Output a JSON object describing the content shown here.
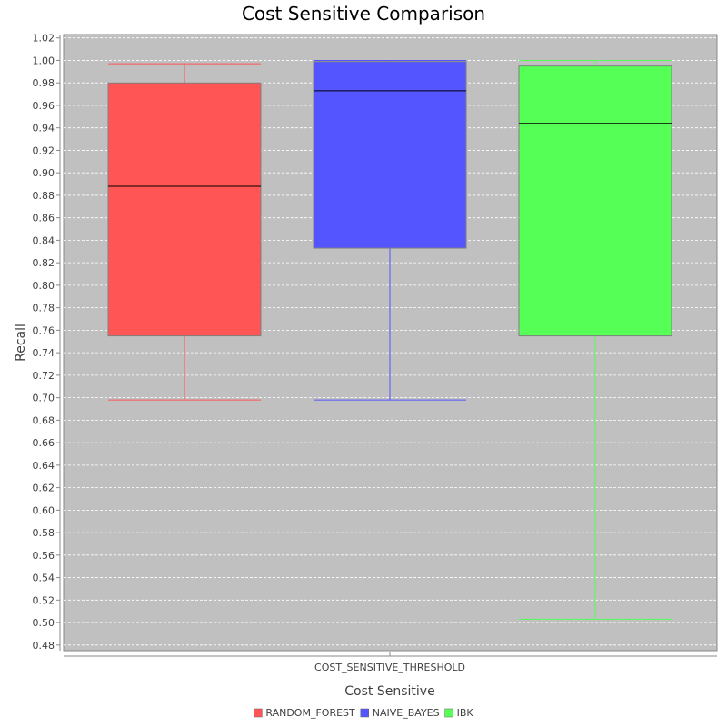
{
  "chart_data": {
    "type": "box",
    "title": "Cost Sensitive Comparison",
    "xlabel": "Cost Sensitive",
    "ylabel": "Recall",
    "ylim": [
      0.475,
      1.023
    ],
    "yticks": [
      "0.48",
      "0.50",
      "0.52",
      "0.54",
      "0.56",
      "0.58",
      "0.60",
      "0.62",
      "0.64",
      "0.66",
      "0.68",
      "0.70",
      "0.72",
      "0.74",
      "0.76",
      "0.78",
      "0.80",
      "0.82",
      "0.84",
      "0.86",
      "0.88",
      "0.90",
      "0.92",
      "0.94",
      "0.96",
      "0.98",
      "1.00",
      "1.02"
    ],
    "categories": [
      "COST_SENSITIVE_THRESHOLD"
    ],
    "grid": true,
    "legend_position": "bottom",
    "series": [
      {
        "name": "RANDOM_FOREST",
        "color": "#ff5555",
        "whisker_color": "#ff5555",
        "min": 0.698,
        "q1": 0.755,
        "median": 0.888,
        "q3": 0.98,
        "max": 0.997
      },
      {
        "name": "NAIVE_BAYES",
        "color": "#5555ff",
        "whisker_color": "#5555ff",
        "min": 0.698,
        "q1": 0.833,
        "median": 0.973,
        "q3": 0.999,
        "max": 1.0
      },
      {
        "name": "IBK",
        "color": "#55ff55",
        "whisker_color": "#55ff55",
        "min": 0.503,
        "q1": 0.755,
        "median": 0.944,
        "q3": 0.995,
        "max": 1.0
      }
    ],
    "plot_background": "#c0c0c0",
    "grid_color": "#ffffff"
  }
}
